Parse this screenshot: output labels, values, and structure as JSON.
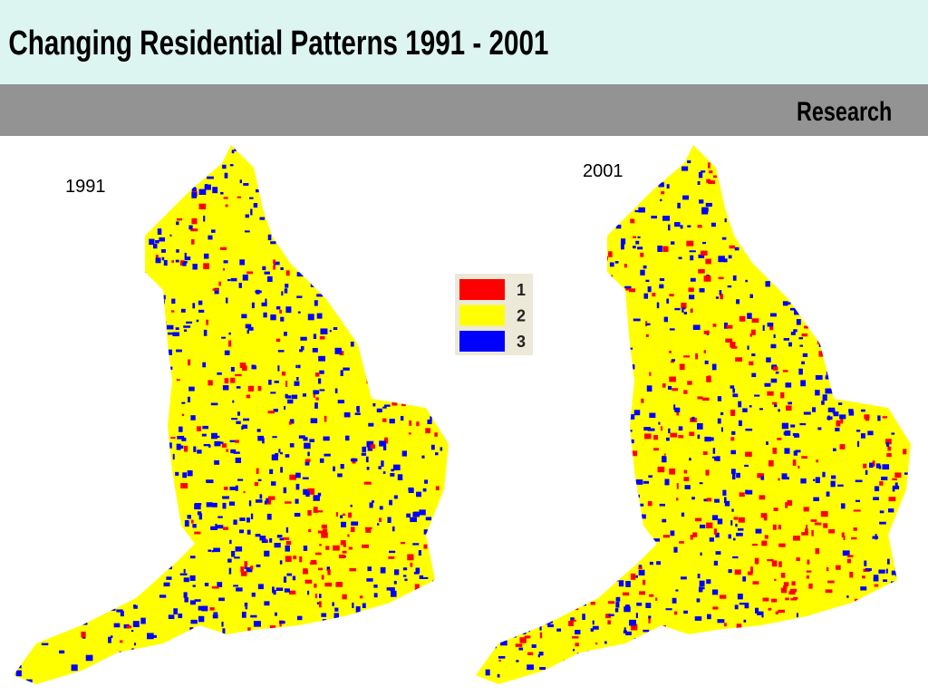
{
  "header": {
    "title": "Changing Residential Patterns 1991 - 2001",
    "section": "Research"
  },
  "maps": [
    {
      "label": "1991"
    },
    {
      "label": "2001"
    }
  ],
  "legend": [
    {
      "label": "1",
      "color": "#ff0000"
    },
    {
      "label": "2",
      "color": "#ffff00"
    },
    {
      "label": "3",
      "color": "#0000ff"
    }
  ]
}
